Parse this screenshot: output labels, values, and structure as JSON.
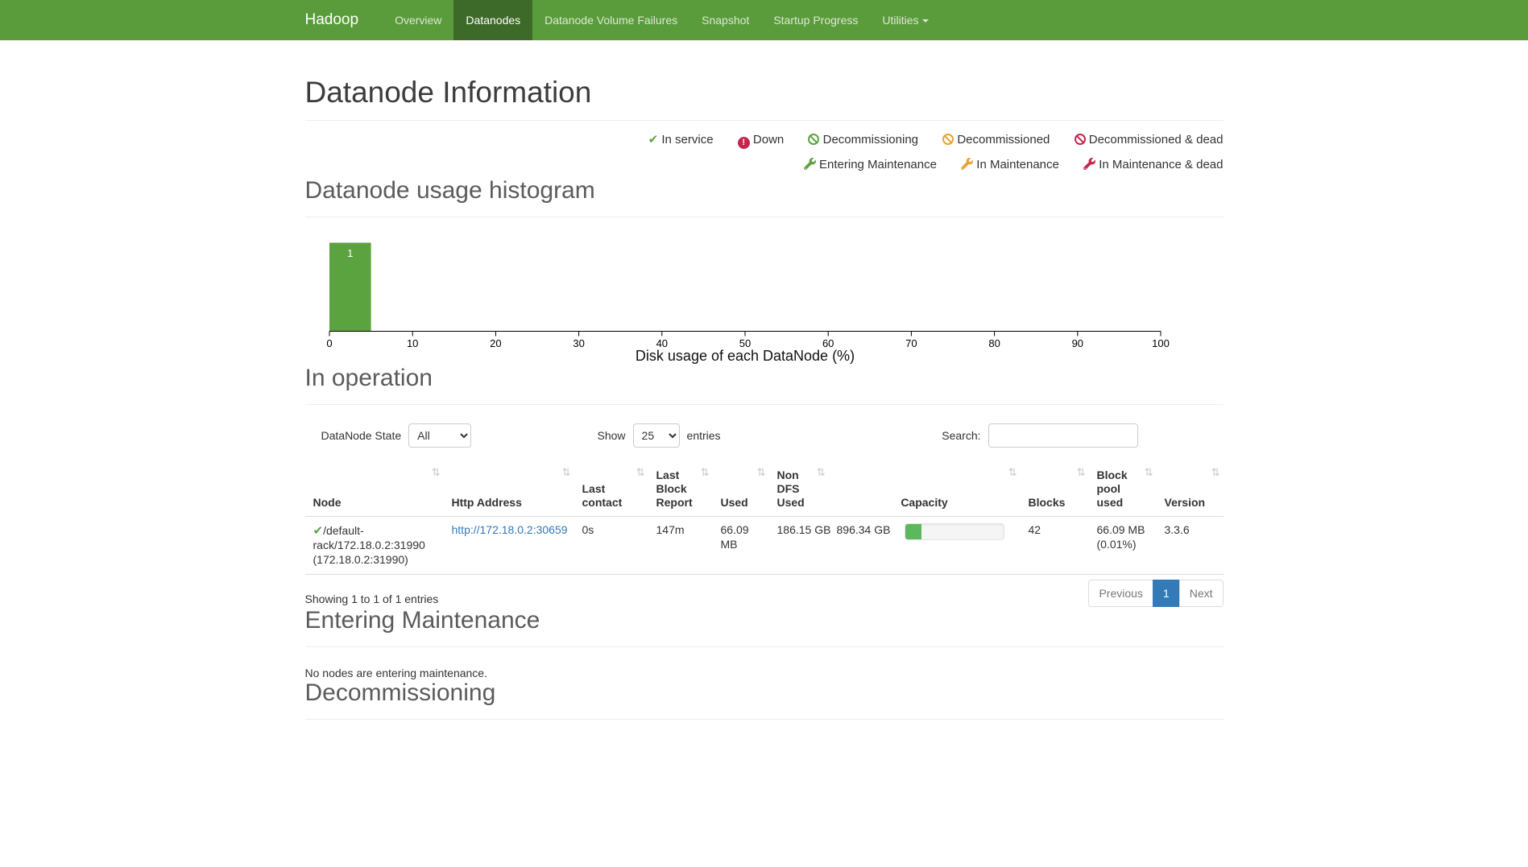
{
  "colors": {
    "navbar_bg": "#5a9c3c",
    "navbar_active_bg": "#3e6a29",
    "green": "#5fa341",
    "orange": "#e9a135",
    "red": "#c7254e",
    "link_blue": "#337ab7",
    "pagination_active": "#337ab7",
    "progress_fill": "#5cb85c"
  },
  "navbar": {
    "brand": "Hadoop",
    "items": [
      {
        "label": "Overview"
      },
      {
        "label": "Datanodes"
      },
      {
        "label": "Datanode Volume Failures"
      },
      {
        "label": "Snapshot"
      },
      {
        "label": "Startup Progress"
      },
      {
        "label": "Utilities"
      }
    ]
  },
  "page_title": "Datanode Information",
  "legend": {
    "row1": [
      {
        "icon": "check",
        "color": "#5fa341",
        "label": "In service"
      },
      {
        "icon": "down",
        "color": "#c7254e",
        "label": "Down"
      },
      {
        "icon": "ban",
        "color": "#5fa341",
        "label": "Decommissioning"
      },
      {
        "icon": "ban",
        "color": "#e9a135",
        "label": "Decommissioned"
      },
      {
        "icon": "ban",
        "color": "#c7254e",
        "label": "Decommissioned & dead"
      }
    ],
    "row2": [
      {
        "icon": "wrench",
        "color": "#5fa341",
        "label": "Entering Maintenance"
      },
      {
        "icon": "wrench",
        "color": "#e9a135",
        "label": "In Maintenance"
      },
      {
        "icon": "wrench",
        "color": "#c7254e",
        "label": "In Maintenance & dead"
      }
    ]
  },
  "histogram_section": {
    "heading": "Datanode usage histogram"
  },
  "chart_data": {
    "type": "bar",
    "title": "Datanode usage histogram",
    "xlabel": "Disk usage of each DataNode (%)",
    "xlim": [
      0,
      100
    ],
    "x_ticks": [
      0,
      10,
      20,
      30,
      40,
      50,
      60,
      70,
      80,
      90,
      100
    ],
    "bins": [
      {
        "range": [
          0,
          5
        ],
        "count": 1
      }
    ],
    "bar_color": "#5ba33f",
    "grid": false,
    "legend_position": "none"
  },
  "in_operation": {
    "heading": "In operation",
    "controls": {
      "state_label": "DataNode State",
      "state_value": "All",
      "show_label": "Show",
      "show_value": "25",
      "entries_label": "entries",
      "search_label": "Search:"
    },
    "table": {
      "sort_icon": "⇅",
      "columns": [
        "Node",
        "Http Address",
        "Last contact",
        "Last Block Report",
        "Used",
        "Non DFS Used",
        "Capacity",
        "Blocks",
        "Block pool used",
        "Version"
      ],
      "rows": [
        {
          "state_icon": "check",
          "node": "/default-rack/172.18.0.2:31990 (172.18.0.2:31990)",
          "http_address": "http://172.18.0.2:30659",
          "last_contact": "0s",
          "last_block_report": "147m",
          "used": "66.09 MB",
          "non_dfs_used": "186.15 GB",
          "capacity": "896.34 GB",
          "capacity_bar_fill": "17%",
          "blocks": "42",
          "block_pool_used": "66.09 MB (0.01%)",
          "version": "3.3.6"
        }
      ]
    },
    "footer": {
      "info": "Showing 1 to 1 of 1 entries",
      "pagination": {
        "previous": "Previous",
        "page": "1",
        "next": "Next"
      }
    }
  },
  "entering_maintenance": {
    "heading": "Entering Maintenance",
    "empty_text": "No nodes are entering maintenance."
  },
  "decommissioning": {
    "heading": "Decommissioning"
  }
}
